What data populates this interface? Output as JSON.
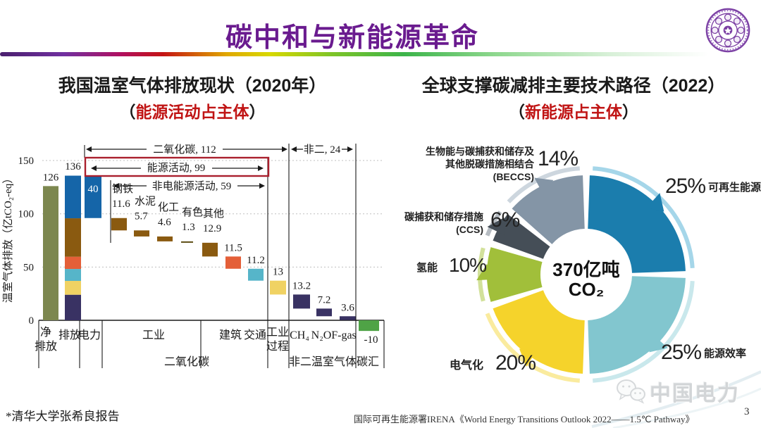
{
  "header": {
    "title": "碳中和与新能源革命",
    "page_number": "3"
  },
  "left_panel": {
    "title": "我国温室气体排放现状（2020年）",
    "subtitle_open": "（",
    "subtitle_highlight": "能源活动占主体",
    "subtitle_close": "）"
  },
  "right_panel": {
    "title": "全球支撑碳减排主要技术路径（2022）",
    "subtitle_open": "（",
    "subtitle_highlight": "新能源占主体",
    "subtitle_close": "）"
  },
  "footer": {
    "note": "*清华大学张希良报告",
    "source": "国际可再生能源署IRENA《World Energy Transitions Outlook 2022——1.5℃ Pathway》",
    "watermark": "中国电力"
  },
  "chart_data": [
    {
      "type": "bar",
      "subtype": "waterfall",
      "title": "我国温室气体排放现状（2020年）",
      "ylabel": "温室气体排放（亿tCO₂-eq）",
      "yticks": [
        0,
        50,
        100,
        150
      ],
      "ylim": [
        -12,
        168
      ],
      "grid": "dotted-horizontal",
      "bars": [
        {
          "id": "net",
          "value": 126,
          "display": "126",
          "kind": "total",
          "color": "#7c874f"
        },
        {
          "id": "emission",
          "value": 136,
          "display": "136",
          "kind": "stacked",
          "segments": [
            {
              "name": "非二温室气体",
              "value": 24,
              "color": "#393263"
            },
            {
              "name": "工业过程",
              "value": 13,
              "color": "#f0d263"
            },
            {
              "name": "交通",
              "value": 11.2,
              "color": "#56b5c9"
            },
            {
              "name": "建筑",
              "value": 11.5,
              "color": "#e45f38"
            },
            {
              "name": "工业非电",
              "value": 36.1,
              "color": "#8a5a10"
            },
            {
              "name": "电力",
              "value": 40,
              "color": "#1565a8"
            }
          ]
        },
        {
          "id": "power",
          "value": 40,
          "display": "40",
          "kind": "step",
          "color": "#1565a8",
          "label_style": "inside"
        },
        {
          "id": "steel",
          "label": "钢铁",
          "value": 11.6,
          "display": "11.6",
          "kind": "step",
          "color": "#8a5a10",
          "label_style": "name-above"
        },
        {
          "id": "cement",
          "label": "水泥",
          "value": 5.7,
          "display": "5.7",
          "kind": "step",
          "color": "#8a5a10",
          "label_style": "name-above"
        },
        {
          "id": "chem",
          "label": "化工",
          "value": 4.6,
          "display": "4.6",
          "kind": "step",
          "color": "#8a5a10",
          "label_style": "name-above"
        },
        {
          "id": "nonferrous",
          "label": "有色",
          "value": 1.3,
          "display": "1.3",
          "kind": "step",
          "color": "#5a4a10",
          "label_style": "name-above"
        },
        {
          "id": "other",
          "label": "其他",
          "value": 12.9,
          "display": "12.9",
          "kind": "step",
          "color": "#8a5a10",
          "label_style": "name-above"
        },
        {
          "id": "building",
          "value": 11.5,
          "display": "11.5",
          "kind": "step",
          "color": "#e45f38",
          "label_style": "above"
        },
        {
          "id": "transport",
          "value": 11.2,
          "display": "11.2",
          "kind": "step",
          "color": "#56b5c9",
          "label_style": "above"
        },
        {
          "id": "process",
          "value": 13,
          "display": "13",
          "kind": "step",
          "color": "#f0d263",
          "label_style": "above"
        },
        {
          "id": "ch4",
          "value": 13.2,
          "display": "13.2",
          "kind": "step",
          "color": "#393263",
          "label_style": "above"
        },
        {
          "id": "n2o",
          "value": 7.2,
          "display": "7.2",
          "kind": "step",
          "color": "#393263",
          "label_style": "above"
        },
        {
          "id": "fgas",
          "value": 3.6,
          "display": "3.6",
          "kind": "step",
          "color": "#393263",
          "label_style": "above"
        },
        {
          "id": "sink",
          "value": -10,
          "display": "-10",
          "kind": "negative-total",
          "color": "#4fa346",
          "label_style": "below"
        }
      ],
      "x_labels_row1": [
        "净\n排放",
        "排放",
        "电力",
        "工业",
        "建筑",
        "交通",
        "工业\n过程",
        "CH₄",
        "N₂O",
        "F-gas"
      ],
      "x_labels_row2": [
        "二氧化碳",
        "非二温室气体",
        "碳汇"
      ],
      "annotations": [
        {
          "id": "co2",
          "text": "二氧化碳, 112",
          "value": 112
        },
        {
          "id": "non-co2",
          "text": "非二, 24",
          "value": 24
        },
        {
          "id": "energy",
          "text": "能源活动, 99",
          "value": 99,
          "boxed": true,
          "box_color": "#aa1f2d"
        },
        {
          "id": "non-elec",
          "text": "非电能源活动, 59",
          "value": 59
        }
      ]
    },
    {
      "type": "pie",
      "subtype": "donut",
      "center_line1": "370亿吨",
      "center_line2": "CO₂",
      "slices": [
        {
          "id": "renewables",
          "label": "可再生能源",
          "pct": 25,
          "pct_label": "25%",
          "color": "#1b7dad",
          "tint": "#a5d6e9"
        },
        {
          "id": "efficiency",
          "label": "能源效率",
          "pct": 25,
          "pct_label": "25%",
          "color": "#82c6cf",
          "tint": "#c9e8ec"
        },
        {
          "id": "electrification",
          "label": "电气化",
          "pct": 20,
          "pct_label": "20%",
          "color": "#f5d32b",
          "tint": "#faeb9e"
        },
        {
          "id": "hydrogen",
          "label": "氢能",
          "pct": 10,
          "pct_label": "10%",
          "color": "#a1bf3a",
          "tint": "#d2e19a"
        },
        {
          "id": "ccs",
          "label_lines": [
            "碳捕获和储存措施",
            "(CCS)"
          ],
          "pct": 6,
          "pct_label": "6%",
          "color": "#454e57",
          "tint": "#b6bcc2"
        },
        {
          "id": "beccs",
          "label_lines": [
            "生物能与碳捕获和储存及",
            "其他脱碳措施相结合",
            "(BECCS)"
          ],
          "pct": 14,
          "pct_label": "14%",
          "color": "#8495a6",
          "tint": "#cdd6de"
        }
      ]
    }
  ]
}
